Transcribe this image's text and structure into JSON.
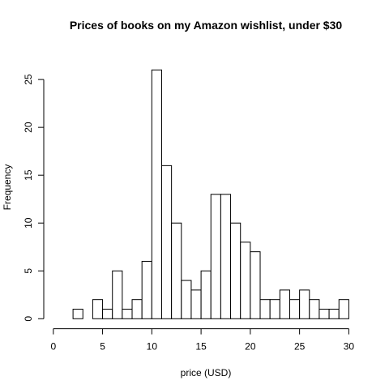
{
  "chart_data": {
    "type": "bar",
    "title": "Prices of books on my Amazon wishlist, under $30",
    "xlabel": "price (USD)",
    "ylabel": "Frequency",
    "xlim": [
      0,
      30
    ],
    "ylim": [
      0,
      26
    ],
    "x_ticks": [
      0,
      5,
      10,
      15,
      20,
      25,
      30
    ],
    "y_ticks": [
      0,
      5,
      10,
      15,
      20,
      25
    ],
    "bin_width": 1,
    "bins": [
      [
        1,
        2
      ],
      [
        2,
        3
      ],
      [
        3,
        4
      ],
      [
        4,
        5
      ],
      [
        5,
        6
      ],
      [
        6,
        7
      ],
      [
        7,
        8
      ],
      [
        8,
        9
      ],
      [
        9,
        10
      ],
      [
        10,
        11
      ],
      [
        11,
        12
      ],
      [
        12,
        13
      ],
      [
        13,
        14
      ],
      [
        14,
        15
      ],
      [
        15,
        16
      ],
      [
        16,
        17
      ],
      [
        17,
        18
      ],
      [
        18,
        19
      ],
      [
        19,
        20
      ],
      [
        20,
        21
      ],
      [
        21,
        22
      ],
      [
        22,
        23
      ],
      [
        23,
        24
      ],
      [
        24,
        25
      ],
      [
        25,
        26
      ],
      [
        26,
        27
      ],
      [
        27,
        28
      ],
      [
        28,
        29
      ],
      [
        29,
        30
      ]
    ],
    "values": [
      0,
      1,
      0,
      2,
      1,
      5,
      1,
      2,
      6,
      26,
      16,
      10,
      4,
      3,
      5,
      13,
      13,
      10,
      8,
      7,
      2,
      2,
      3,
      2,
      3,
      2,
      1,
      1,
      2
    ],
    "colors": {
      "bar_fill": "#ffffff",
      "bar_stroke": "#000000",
      "axis": "#000000"
    },
    "grid": false,
    "legend": "none"
  }
}
